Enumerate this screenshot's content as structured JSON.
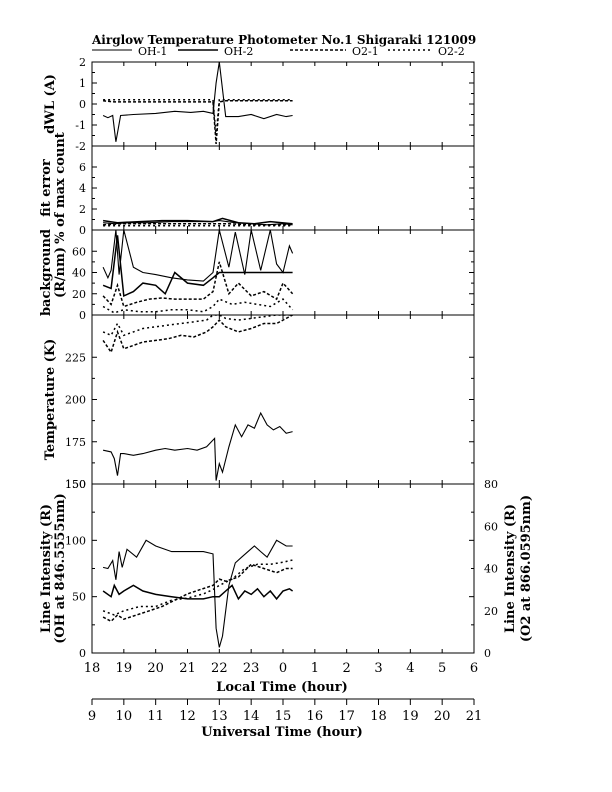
{
  "chart_data": {
    "type": "line",
    "title": "Airglow Temperature Photometer No.1   Shigaraki   121009",
    "legend": [
      "OH-1",
      "OH-2",
      "O2-1",
      "O2-2"
    ],
    "xlabel": "Local Time (hour)",
    "x2label": "Universal Time (hour)",
    "xlim": [
      18,
      30
    ],
    "x_ticks": [
      "18",
      "19",
      "20",
      "21",
      "22",
      "23",
      "0",
      "1",
      "2",
      "3",
      "4",
      "5",
      "6"
    ],
    "x2_ticks": [
      "9",
      "10",
      "11",
      "12",
      "13",
      "14",
      "15",
      "16",
      "17",
      "18",
      "19",
      "20",
      "21"
    ],
    "panels": [
      {
        "id": "dwl",
        "ylabel": "dWL (A)",
        "ylim": [
          -2,
          2
        ],
        "yticks": [
          "2",
          "1",
          "0",
          "-1",
          "-2"
        ],
        "series": [
          {
            "legend_index": 0,
            "style": "solid",
            "x": [
              18.35,
              18.5,
              18.65,
              18.75,
              18.9,
              19.3,
              20.0,
              20.6,
              21.1,
              21.5,
              21.8,
              21.9,
              22.0,
              22.2,
              22.6,
              23.0,
              23.4,
              23.8,
              24.1,
              24.3
            ],
            "y": [
              -0.55,
              -0.65,
              -0.55,
              -1.8,
              -0.55,
              -0.5,
              -0.45,
              -0.35,
              -0.4,
              -0.35,
              -0.45,
              1.0,
              2.0,
              -0.6,
              -0.6,
              -0.5,
              -0.7,
              -0.5,
              -0.6,
              -0.55
            ]
          },
          {
            "legend_index": 2,
            "style": "dashed",
            "x": [
              18.35,
              18.7,
              19.0,
              19.5,
              20.0,
              20.5,
              21.0,
              21.5,
              21.8,
              21.9,
              22.0,
              22.2,
              22.6,
              23.0,
              23.5,
              24.0,
              24.3
            ],
            "y": [
              0.15,
              0.1,
              0.1,
              0.1,
              0.1,
              0.1,
              0.1,
              0.1,
              0.1,
              -1.9,
              0.1,
              0.15,
              0.15,
              0.15,
              0.15,
              0.15,
              0.15
            ]
          },
          {
            "legend_index": 3,
            "style": "dashed",
            "x": [
              18.35,
              19.0,
              20.0,
              21.0,
              21.8,
              21.9,
              22.0,
              22.5,
              23.0,
              24.0,
              24.3
            ],
            "y": [
              0.2,
              0.2,
              0.2,
              0.2,
              0.2,
              -1.5,
              0.2,
              0.2,
              0.2,
              0.2,
              0.2
            ]
          }
        ]
      },
      {
        "id": "fit",
        "ylabel": "fit error",
        "ylabel2": "% of max count",
        "ylim": [
          0,
          8
        ],
        "yticks": [
          "6",
          "4",
          "2",
          "0"
        ],
        "series": [
          {
            "legend_index": 0,
            "style": "solid",
            "x": [
              18.35,
              18.7,
              19.2,
              19.8,
              20.5,
              21.2,
              21.8,
              22.0,
              22.5,
              23.0,
              23.5,
              24.0,
              24.3
            ],
            "y": [
              0.7,
              0.6,
              0.7,
              0.7,
              0.8,
              0.8,
              0.8,
              0.9,
              0.7,
              0.6,
              0.5,
              0.6,
              0.5
            ]
          },
          {
            "legend_index": 1,
            "style": "solid",
            "x": [
              18.35,
              18.8,
              19.5,
              20.2,
              21.0,
              21.8,
              22.1,
              22.6,
              23.1,
              23.6,
              24.3
            ],
            "y": [
              0.9,
              0.7,
              0.8,
              0.9,
              0.9,
              0.8,
              1.1,
              0.7,
              0.6,
              0.8,
              0.6
            ]
          },
          {
            "legend_index": 2,
            "style": "dashed",
            "x": [
              18.35,
              19.0,
              20.0,
              21.0,
              21.8,
              22.2,
              23.0,
              23.6,
              24.3
            ],
            "y": [
              0.5,
              0.6,
              0.6,
              0.6,
              0.6,
              0.6,
              0.5,
              0.5,
              0.5
            ]
          },
          {
            "legend_index": 3,
            "style": "dashed",
            "x": [
              18.35,
              19.0,
              20.0,
              21.0,
              21.8,
              22.2,
              23.0,
              24.3
            ],
            "y": [
              0.4,
              0.4,
              0.4,
              0.4,
              0.4,
              0.4,
              0.4,
              0.4
            ]
          }
        ]
      },
      {
        "id": "bg",
        "ylabel": "background",
        "ylabel2": "(R/nm)",
        "ylim": [
          0,
          80
        ],
        "yticks": [
          "60",
          "40",
          "20",
          "0"
        ],
        "series": [
          {
            "legend_index": 0,
            "style": "solid",
            "x": [
              18.35,
              18.5,
              18.6,
              18.75,
              18.85,
              19.0,
              19.3,
              19.6,
              20.0,
              20.5,
              21.0,
              21.5,
              21.8,
              22.0,
              22.3,
              22.5,
              22.8,
              23.0,
              23.3,
              23.6,
              23.8,
              24.0,
              24.2,
              24.3
            ],
            "y": [
              45,
              35,
              42,
              80,
              38,
              80,
              45,
              40,
              38,
              35,
              33,
              32,
              40,
              80,
              45,
              78,
              38,
              80,
              42,
              80,
              48,
              40,
              65,
              58
            ]
          },
          {
            "legend_index": 1,
            "style": "solid",
            "x": [
              18.35,
              18.6,
              18.8,
              19.0,
              19.3,
              19.6,
              20.0,
              20.3,
              20.6,
              21.0,
              21.5,
              21.8,
              22.0,
              22.4,
              22.8,
              23.2,
              23.6,
              24.0,
              24.3
            ],
            "y": [
              28,
              25,
              75,
              18,
              22,
              30,
              28,
              20,
              40,
              30,
              28,
              35,
              40,
              40,
              40,
              40,
              40,
              40,
              40
            ]
          },
          {
            "legend_index": 2,
            "style": "dashed",
            "x": [
              18.35,
              18.6,
              18.8,
              19.0,
              19.4,
              19.8,
              20.2,
              20.6,
              21.0,
              21.5,
              21.8,
              22.0,
              22.3,
              22.6,
              23.0,
              23.4,
              23.8,
              24.0,
              24.3
            ],
            "y": [
              18,
              10,
              28,
              8,
              12,
              15,
              16,
              15,
              15,
              15,
              22,
              50,
              20,
              30,
              18,
              22,
              15,
              30,
              20
            ]
          },
          {
            "legend_index": 3,
            "style": "dashed",
            "x": [
              18.35,
              18.7,
              19.0,
              19.5,
              20.0,
              20.5,
              21.0,
              21.5,
              21.8,
              22.0,
              22.4,
              22.8,
              23.2,
              23.6,
              24.0,
              24.3
            ],
            "y": [
              8,
              2,
              5,
              3,
              3,
              5,
              5,
              3,
              8,
              15,
              10,
              12,
              10,
              8,
              15,
              5
            ]
          }
        ]
      },
      {
        "id": "temp",
        "ylabel": "Temperature (K)",
        "ylim": [
          150,
          250
        ],
        "yticks": [
          "225",
          "200",
          "175",
          "150"
        ],
        "series": [
          {
            "legend_index": 0,
            "style": "solid",
            "x": [
              18.35,
              18.6,
              18.7,
              18.8,
              18.9,
              19.0,
              19.3,
              19.6,
              20.0,
              20.3,
              20.6,
              21.0,
              21.3,
              21.6,
              21.85,
              21.9,
              22.0,
              22.1,
              22.3,
              22.5,
              22.7,
              22.9,
              23.1,
              23.3,
              23.5,
              23.7,
              23.9,
              24.1,
              24.3
            ],
            "y": [
              170,
              169,
              165,
              155,
              168,
              168,
              167,
              168,
              170,
              171,
              170,
              171,
              170,
              172,
              177,
              152,
              162,
              157,
              172,
              185,
              178,
              185,
              183,
              192,
              185,
              182,
              184,
              180,
              181
            ]
          },
          {
            "legend_index": 2,
            "style": "dashed",
            "x": [
              18.35,
              18.6,
              18.8,
              19.0,
              19.3,
              19.6,
              20.0,
              20.4,
              20.8,
              21.2,
              21.6,
              21.8,
              22.0,
              22.2,
              22.6,
              23.0,
              23.4,
              23.8,
              24.1,
              24.3
            ],
            "y": [
              235,
              228,
              240,
              230,
              232,
              234,
              235,
              236,
              238,
              237,
              240,
              243,
              247,
              243,
              240,
              242,
              245,
              245,
              248,
              250
            ]
          },
          {
            "legend_index": 3,
            "style": "dashed",
            "x": [
              18.35,
              18.6,
              18.8,
              19.0,
              19.3,
              19.6,
              20.0,
              20.4,
              20.8,
              21.2,
              21.6,
              21.8,
              22.0,
              22.2,
              22.6,
              23.0,
              23.4,
              23.8,
              24.3
            ],
            "y": [
              240,
              238,
              245,
              238,
              240,
              242,
              243,
              244,
              245,
              246,
              247,
              250,
              250,
              248,
              247,
              248,
              249,
              250,
              250
            ]
          }
        ]
      },
      {
        "id": "intensity",
        "ylabel": "Line Intensity (R)",
        "ylabel2": "(OH at 846.5555nm)",
        "ylim": [
          0,
          150
        ],
        "yticks": [
          "150",
          "100",
          "50",
          "0"
        ],
        "y2label": "Line Intensity (R)",
        "y2label2": "(O2 at 866.0595nm)",
        "y2lim": [
          0,
          80
        ],
        "y2ticks": [
          "80",
          "60",
          "40",
          "20",
          "0"
        ],
        "series": [
          {
            "legend_index": 0,
            "style": "solid",
            "axis": "left",
            "x": [
              18.35,
              18.5,
              18.65,
              18.75,
              18.85,
              18.95,
              19.1,
              19.4,
              19.7,
              20.0,
              20.5,
              21.0,
              21.5,
              21.8,
              21.9,
              22.0,
              22.1,
              22.3,
              22.5,
              22.7,
              22.9,
              23.1,
              23.3,
              23.5,
              23.8,
              24.1,
              24.3
            ],
            "y": [
              76,
              75,
              82,
              65,
              90,
              76,
              92,
              85,
              100,
              95,
              90,
              90,
              90,
              88,
              22,
              5,
              15,
              60,
              80,
              85,
              90,
              95,
              90,
              85,
              100,
              95,
              95
            ]
          },
          {
            "legend_index": 1,
            "style": "solid",
            "axis": "left",
            "x": [
              18.35,
              18.6,
              18.7,
              18.85,
              19.0,
              19.3,
              19.6,
              20.0,
              20.5,
              21.0,
              21.5,
              21.8,
              22.0,
              22.2,
              22.4,
              22.6,
              22.8,
              23.0,
              23.2,
              23.4,
              23.6,
              23.8,
              24.0,
              24.2,
              24.3
            ],
            "y": [
              55,
              50,
              60,
              52,
              55,
              60,
              55,
              52,
              50,
              48,
              48,
              50,
              50,
              55,
              60,
              48,
              55,
              52,
              57,
              50,
              55,
              48,
              55,
              57,
              55
            ]
          },
          {
            "legend_index": 2,
            "style": "dashed",
            "axis": "right",
            "x": [
              18.35,
              18.6,
              18.8,
              19.0,
              19.4,
              19.8,
              20.2,
              20.6,
              21.0,
              21.4,
              21.8,
              22.0,
              22.2,
              22.6,
              23.0,
              23.4,
              23.8,
              24.1,
              24.3
            ],
            "y": [
              17,
              15,
              18,
              16,
              18,
              20,
              22,
              25,
              28,
              30,
              32,
              35,
              34,
              36,
              42,
              40,
              38,
              40,
              40
            ]
          },
          {
            "legend_index": 3,
            "style": "dashed",
            "axis": "right",
            "x": [
              18.35,
              18.7,
              19.0,
              19.5,
              20.0,
              20.5,
              21.0,
              21.5,
              21.8,
              22.0,
              22.4,
              22.8,
              23.2,
              23.6,
              24.0,
              24.3
            ],
            "y": [
              20,
              18,
              20,
              22,
              22,
              25,
              26,
              28,
              30,
              32,
              35,
              40,
              42,
              42,
              43,
              44
            ]
          }
        ]
      }
    ]
  }
}
